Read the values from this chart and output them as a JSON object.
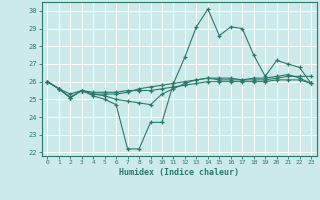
{
  "xlabel": "Humidex (Indice chaleur)",
  "ylabel": "",
  "bg_color": "#cceaea",
  "grid_color": "#ffffff",
  "line_color": "#2a7a6a",
  "xlim": [
    -0.5,
    23.5
  ],
  "ylim": [
    21.8,
    30.5
  ],
  "yticks": [
    22,
    23,
    24,
    25,
    26,
    27,
    28,
    29,
    30
  ],
  "xticks": [
    0,
    1,
    2,
    3,
    4,
    5,
    6,
    7,
    8,
    9,
    10,
    11,
    12,
    13,
    14,
    15,
    16,
    17,
    18,
    19,
    20,
    21,
    22,
    23
  ],
  "lines": [
    [
      26.0,
      25.6,
      25.1,
      25.5,
      25.2,
      25.0,
      24.7,
      22.2,
      22.2,
      23.7,
      23.7,
      25.9,
      27.4,
      29.1,
      30.1,
      28.6,
      29.1,
      29.0,
      27.5,
      26.3,
      27.2,
      27.0,
      26.8,
      25.9
    ],
    [
      26.0,
      25.6,
      25.1,
      25.5,
      25.3,
      25.3,
      25.3,
      25.4,
      25.6,
      25.7,
      25.8,
      25.9,
      26.0,
      26.1,
      26.2,
      26.2,
      26.2,
      26.1,
      26.1,
      26.1,
      26.2,
      26.3,
      26.3,
      26.3
    ],
    [
      26.0,
      25.6,
      25.3,
      25.5,
      25.4,
      25.4,
      25.4,
      25.5,
      25.5,
      25.5,
      25.6,
      25.7,
      25.8,
      25.9,
      26.0,
      26.0,
      26.0,
      26.0,
      26.0,
      26.0,
      26.1,
      26.1,
      26.1,
      25.9
    ],
    [
      26.0,
      25.6,
      25.1,
      25.5,
      25.3,
      25.2,
      25.0,
      24.9,
      24.8,
      24.7,
      25.3,
      25.6,
      25.9,
      26.1,
      26.2,
      26.1,
      26.1,
      26.1,
      26.2,
      26.2,
      26.3,
      26.4,
      26.2,
      25.9
    ]
  ]
}
